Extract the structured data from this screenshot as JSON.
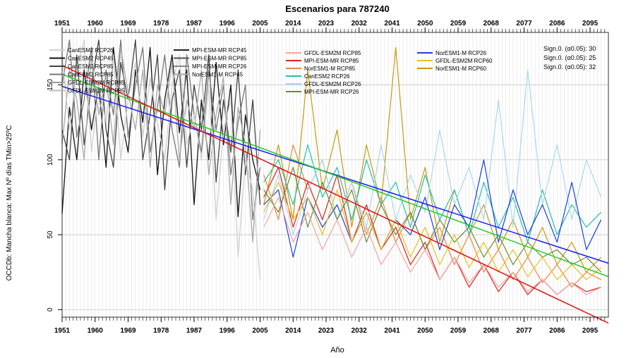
{
  "chart_data": {
    "type": "line",
    "title": "Escenarios para 787240",
    "xlabel": "Año",
    "ylabel": "OCCDb: Mancha blanca: Max Nº días TMin>25ºC",
    "xlim": [
      1951,
      2100
    ],
    "ylim": [
      -5,
      185
    ],
    "x_ticks": [
      1951,
      1960,
      1969,
      1978,
      1987,
      1996,
      2005,
      2014,
      2023,
      2032,
      2041,
      2050,
      2059,
      2068,
      2077,
      2086,
      2095
    ],
    "y_ticks": [
      0,
      50,
      100,
      150
    ],
    "grid": true,
    "legend_position": "top",
    "legend_hist": [
      {
        "name": "CanESM2 RCP26",
        "color": "#cfcfcf"
      },
      {
        "name": "CanESM2 RCP45",
        "color": "#111111"
      },
      {
        "name": "CanESM2 RCP85",
        "color": "#444444"
      },
      {
        "name": "CanESM2 RCP85",
        "color": "#777777"
      },
      {
        "name": "GFDL-ESM2M RCP85",
        "color": "#999999"
      },
      {
        "name": "GFDL-ESM2M RCP85",
        "color": "#bbbbbb"
      },
      {
        "name": "MPI-ESM-MR RCP45",
        "color": "#222222"
      },
      {
        "name": "MPI-ESM-MR RCP85",
        "color": "#555555"
      },
      {
        "name": "MPI-ESM-MR RCP26",
        "color": "#888888"
      },
      {
        "name": "NorESM1-M RCP45",
        "color": "#aaaaaa"
      }
    ],
    "legend_future": [
      {
        "name": "GFDL-ESM2M RCP85",
        "color": "#f4a3a3"
      },
      {
        "name": "MPI-ESM-MR RCP85",
        "color": "#e0201b"
      },
      {
        "name": "NorESM1-M RCP85",
        "color": "#e88a3a"
      },
      {
        "name": "CanESM2 RCP26",
        "color": "#20c0b0"
      },
      {
        "name": "GFDL-ESM2M RCP26",
        "color": "#a8d8f0"
      },
      {
        "name": "MPI-ESM-MR RCP26",
        "color": "#6a8a3a"
      },
      {
        "name": "NorESM1-M RCP26",
        "color": "#1f3fe0"
      },
      {
        "name": "GFDL-ESM2M RCP60",
        "color": "#e8c020"
      },
      {
        "name": "NorESM1-M RCP60",
        "color": "#c89a10"
      }
    ],
    "significance": [
      {
        "label": "Sign.0. (α0.05): 30",
        "color": "#3333ff"
      },
      {
        "label": "Sign.0. (α0.05): 25",
        "color": "#33cc33"
      },
      {
        "label": "Sign.0. (α0.05): 32",
        "color": "#ff2a2a"
      }
    ],
    "trends": [
      {
        "color": "#1a1aff",
        "x": [
          1951,
          2100
        ],
        "y": [
          149,
          31
        ]
      },
      {
        "color": "#22cc22",
        "x": [
          1951,
          2100
        ],
        "y": [
          157,
          22
        ]
      },
      {
        "color": "#e01010",
        "x": [
          1951,
          2100
        ],
        "y": [
          163,
          -9
        ]
      }
    ],
    "series_hist": [
      {
        "color": "#111111",
        "x": [
          1951,
          1953,
          1955,
          1957,
          1959,
          1961,
          1963,
          1965,
          1967,
          1969,
          1971,
          1973,
          1975,
          1977,
          1979,
          1981,
          1983,
          1985,
          1987,
          1989,
          1991,
          1993,
          1995,
          1997,
          1999,
          2001,
          2003,
          2005
        ],
        "y": [
          64,
          135,
          100,
          160,
          120,
          150,
          95,
          175,
          130,
          105,
          160,
          125,
          175,
          90,
          140,
          170,
          118,
          160,
          70,
          140,
          100,
          165,
          110,
          150,
          62,
          130,
          100,
          80
        ]
      },
      {
        "color": "#444444",
        "x": [
          1951,
          1953,
          1955,
          1957,
          1959,
          1961,
          1963,
          1965,
          1967,
          1969,
          1971,
          1973,
          1975,
          1977,
          1979,
          1981,
          1983,
          1985,
          1987,
          1989,
          1991,
          1993,
          1995,
          1997,
          1999,
          2001,
          2003,
          2005
        ],
        "y": [
          120,
          100,
          170,
          110,
          150,
          180,
          120,
          95,
          165,
          140,
          180,
          100,
          130,
          170,
          80,
          140,
          160,
          95,
          150,
          120,
          170,
          85,
          140,
          105,
          160,
          90,
          140,
          70
        ]
      },
      {
        "color": "#777777",
        "x": [
          1951,
          1953,
          1955,
          1957,
          1959,
          1961,
          1963,
          1965,
          1967,
          1969,
          1971,
          1973,
          1975,
          1977,
          1979,
          1981,
          1983,
          1985,
          1987,
          1989,
          1991,
          1993,
          1995,
          1997,
          1999,
          2001,
          2003,
          2005
        ],
        "y": [
          150,
          180,
          115,
          140,
          175,
          100,
          160,
          130,
          180,
          115,
          150,
          175,
          105,
          135,
          170,
          120,
          95,
          170,
          130,
          105,
          160,
          120,
          150,
          90,
          125,
          150,
          60,
          95
        ]
      },
      {
        "color": "#aaaaaa",
        "x": [
          1951,
          1953,
          1955,
          1957,
          1959,
          1961,
          1963,
          1965,
          1967,
          1969,
          1971,
          1973,
          1975,
          1977,
          1979,
          1981,
          1983,
          1985,
          1987,
          1989,
          1991,
          1993,
          1995,
          1997,
          1999,
          2001,
          2003,
          2005
        ],
        "y": [
          110,
          160,
          140,
          100,
          170,
          130,
          155,
          110,
          175,
          145,
          120,
          160,
          95,
          150,
          130,
          165,
          100,
          140,
          120,
          160,
          90,
          130,
          155,
          70,
          135,
          110,
          45,
          120
        ]
      },
      {
        "color": "#d0d0d0",
        "x": [
          1951,
          1953,
          1955,
          1957,
          1959,
          1961,
          1963,
          1965,
          1967,
          1969,
          1971,
          1973,
          1975,
          1977,
          1979,
          1981,
          1983,
          1985,
          1987,
          1989,
          1991,
          1993,
          1995,
          1997,
          1999,
          2001,
          2003,
          2005
        ],
        "y": [
          170,
          120,
          160,
          180,
          105,
          150,
          125,
          170,
          100,
          140,
          165,
          115,
          155,
          125,
          100,
          150,
          170,
          110,
          130,
          100,
          150,
          60,
          120,
          140,
          35,
          100,
          80,
          20
        ]
      }
    ],
    "series_future": [
      {
        "color": "#c89a10",
        "x": [
          2006,
          2010,
          2014,
          2018,
          2022,
          2026,
          2030,
          2034,
          2038,
          2042,
          2046,
          2050,
          2054,
          2058,
          2062,
          2066,
          2070,
          2074,
          2078,
          2082,
          2086,
          2090,
          2094,
          2098
        ],
        "y": [
          70,
          110,
          60,
          160,
          80,
          120,
          55,
          110,
          70,
          175,
          60,
          95,
          45,
          80,
          50,
          70,
          40,
          60,
          35,
          55,
          30,
          45,
          25,
          35
        ]
      },
      {
        "color": "#e88a3a",
        "x": [
          2006,
          2010,
          2014,
          2018,
          2022,
          2026,
          2030,
          2034,
          2038,
          2042,
          2046,
          2050,
          2054,
          2058,
          2062,
          2066,
          2070,
          2074,
          2078,
          2082,
          2086,
          2090,
          2094,
          2098
        ],
        "y": [
          90,
          60,
          110,
          80,
          100,
          60,
          85,
          50,
          75,
          45,
          65,
          40,
          55,
          30,
          50,
          25,
          40,
          20,
          35,
          18,
          30,
          15,
          25,
          20
        ]
      },
      {
        "color": "#e0201b",
        "x": [
          2006,
          2010,
          2014,
          2018,
          2022,
          2026,
          2030,
          2034,
          2038,
          2042,
          2046,
          2050,
          2054,
          2058,
          2062,
          2066,
          2070,
          2074,
          2078,
          2082,
          2086,
          2090,
          2094,
          2098
        ],
        "y": [
          75,
          95,
          55,
          85,
          60,
          90,
          45,
          70,
          40,
          55,
          30,
          45,
          20,
          35,
          15,
          30,
          12,
          25,
          10,
          20,
          10,
          18,
          12,
          15
        ]
      },
      {
        "color": "#20c0b0",
        "x": [
          2006,
          2010,
          2014,
          2018,
          2022,
          2026,
          2030,
          2034,
          2038,
          2042,
          2046,
          2050,
          2054,
          2058,
          2062,
          2066,
          2070,
          2074,
          2078,
          2082,
          2086,
          2090,
          2094,
          2098
        ],
        "y": [
          85,
          100,
          70,
          110,
          75,
          95,
          60,
          100,
          70,
          85,
          55,
          90,
          60,
          80,
          50,
          85,
          55,
          75,
          45,
          80,
          50,
          70,
          55,
          65
        ]
      },
      {
        "color": "#a8d8f0",
        "x": [
          2006,
          2010,
          2014,
          2018,
          2022,
          2026,
          2030,
          2034,
          2038,
          2042,
          2046,
          2050,
          2054,
          2058,
          2062,
          2066,
          2070,
          2074,
          2078,
          2082,
          2086,
          2090,
          2094,
          2098
        ],
        "y": [
          60,
          90,
          50,
          80,
          100,
          60,
          85,
          55,
          110,
          60,
          90,
          65,
          120,
          70,
          95,
          60,
          140,
          55,
          160,
          70,
          110,
          60,
          100,
          75
        ]
      },
      {
        "color": "#1f3fe0",
        "x": [
          2006,
          2010,
          2014,
          2018,
          2022,
          2026,
          2030,
          2034,
          2038,
          2042,
          2046,
          2050,
          2054,
          2058,
          2062,
          2066,
          2070,
          2074,
          2078,
          2082,
          2086,
          2090,
          2094,
          2098
        ],
        "y": [
          70,
          80,
          35,
          75,
          55,
          70,
          45,
          65,
          40,
          60,
          50,
          75,
          40,
          70,
          55,
          100,
          45,
          80,
          50,
          70,
          45,
          85,
          40,
          60
        ]
      },
      {
        "color": "#6a8a3a",
        "x": [
          2006,
          2010,
          2014,
          2018,
          2022,
          2026,
          2030,
          2034,
          2038,
          2042,
          2046,
          2050,
          2054,
          2058,
          2062,
          2066,
          2070,
          2074,
          2078,
          2082,
          2086,
          2090,
          2094,
          2098
        ],
        "y": [
          80,
          65,
          95,
          55,
          85,
          60,
          80,
          45,
          70,
          50,
          65,
          40,
          60,
          45,
          55,
          35,
          50,
          30,
          45,
          35,
          40,
          30,
          35,
          25
        ]
      },
      {
        "color": "#e8c020",
        "x": [
          2006,
          2010,
          2014,
          2018,
          2022,
          2026,
          2030,
          2034,
          2038,
          2042,
          2046,
          2050,
          2054,
          2058,
          2062,
          2066,
          2070,
          2074,
          2078,
          2082,
          2086,
          2090,
          2094,
          2098
        ],
        "y": [
          65,
          85,
          60,
          75,
          50,
          80,
          45,
          65,
          40,
          60,
          35,
          55,
          30,
          50,
          28,
          45,
          25,
          40,
          22,
          35,
          20,
          30,
          20,
          28
        ]
      },
      {
        "color": "#f4a3a3",
        "x": [
          2006,
          2010,
          2014,
          2018,
          2022,
          2026,
          2030,
          2034,
          2038,
          2042,
          2046,
          2050,
          2054,
          2058,
          2062,
          2066,
          2070,
          2074,
          2078,
          2082,
          2086,
          2090,
          2094,
          2098
        ],
        "y": [
          55,
          75,
          45,
          65,
          40,
          60,
          35,
          55,
          30,
          45,
          25,
          40,
          20,
          35,
          18,
          30,
          15,
          25,
          12,
          20,
          10,
          18,
          10,
          15
        ]
      }
    ]
  }
}
